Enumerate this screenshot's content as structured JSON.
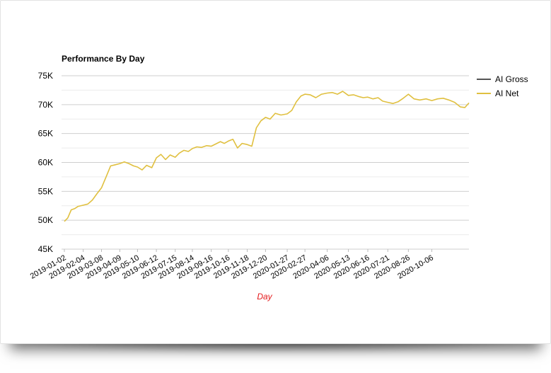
{
  "chart_data": {
    "type": "line",
    "title": "Performance By Day",
    "xlabel": "Day",
    "ylabel": "",
    "ylim": [
      45000,
      75000
    ],
    "y_ticks": [
      45000,
      50000,
      55000,
      60000,
      65000,
      70000,
      75000
    ],
    "y_tick_labels": [
      "45K",
      "50K",
      "55K",
      "60K",
      "65K",
      "70K",
      "75K"
    ],
    "x_range": [
      "2019-01-02",
      "2020-12-10"
    ],
    "x_tick_labels": [
      "2019-01-02",
      "2019-02-04",
      "2019-03-08",
      "2019-04-09",
      "2019-05-10",
      "2019-06-12",
      "2019-07-15",
      "2019-08-14",
      "2019-09-16",
      "2019-10-16",
      "2019-11-18",
      "2019-12-20",
      "2020-01-27",
      "2020-02-27",
      "2020-04-06",
      "2020-05-13",
      "2020-06-16",
      "2020-07-21",
      "2020-08-26",
      "2020-10-06"
    ],
    "grid": true,
    "legend_position": "right",
    "series": [
      {
        "name": "AI Gross",
        "color": "#555555",
        "x": [],
        "values": []
      },
      {
        "name": "AI Net",
        "color": "#e0c040",
        "x": [
          "2019-01-02",
          "2019-01-08",
          "2019-01-14",
          "2019-01-20",
          "2019-01-26",
          "2019-02-04",
          "2019-02-12",
          "2019-02-20",
          "2019-02-28",
          "2019-03-08",
          "2019-03-16",
          "2019-03-24",
          "2019-04-01",
          "2019-04-09",
          "2019-04-17",
          "2019-04-25",
          "2019-05-03",
          "2019-05-10",
          "2019-05-18",
          "2019-05-26",
          "2019-06-04",
          "2019-06-12",
          "2019-06-20",
          "2019-06-28",
          "2019-07-06",
          "2019-07-15",
          "2019-07-22",
          "2019-07-30",
          "2019-08-07",
          "2019-08-14",
          "2019-08-22",
          "2019-08-30",
          "2019-09-08",
          "2019-09-16",
          "2019-09-24",
          "2019-10-02",
          "2019-10-09",
          "2019-10-16",
          "2019-10-24",
          "2019-11-01",
          "2019-11-09",
          "2019-11-18",
          "2019-11-26",
          "2019-12-04",
          "2019-12-12",
          "2019-12-20",
          "2019-12-28",
          "2020-01-06",
          "2020-01-16",
          "2020-01-27",
          "2020-02-04",
          "2020-02-12",
          "2020-02-20",
          "2020-02-27",
          "2020-03-07",
          "2020-03-17",
          "2020-03-27",
          "2020-04-06",
          "2020-04-15",
          "2020-04-24",
          "2020-05-03",
          "2020-05-13",
          "2020-05-22",
          "2020-05-31",
          "2020-06-08",
          "2020-06-16",
          "2020-06-25",
          "2020-07-04",
          "2020-07-12",
          "2020-07-21",
          "2020-07-30",
          "2020-08-08",
          "2020-08-17",
          "2020-08-26",
          "2020-09-05",
          "2020-09-15",
          "2020-09-26",
          "2020-10-06",
          "2020-10-16",
          "2020-10-26",
          "2020-11-05",
          "2020-11-15",
          "2020-11-25",
          "2020-12-03",
          "2020-12-10"
        ],
        "values": [
          49800,
          50400,
          51800,
          52000,
          52400,
          52600,
          52800,
          53500,
          54600,
          55600,
          57500,
          59400,
          59600,
          59800,
          60100,
          59800,
          59400,
          59200,
          58700,
          59500,
          59100,
          60800,
          61400,
          60500,
          61300,
          60900,
          61600,
          62100,
          61900,
          62400,
          62700,
          62600,
          62900,
          62800,
          63200,
          63600,
          63300,
          63700,
          64000,
          62500,
          63300,
          63100,
          62800,
          66000,
          67200,
          67800,
          67500,
          68500,
          68200,
          68400,
          69000,
          70500,
          71500,
          71800,
          71700,
          71200,
          71800,
          72000,
          72100,
          71800,
          72300,
          71600,
          71700,
          71400,
          71200,
          71300,
          71000,
          71200,
          70600,
          70400,
          70200,
          70500,
          71100,
          71800,
          71000,
          70800,
          71000,
          70700,
          71000,
          71100,
          70800,
          70400,
          69600,
          69500,
          70300
        ]
      }
    ]
  }
}
